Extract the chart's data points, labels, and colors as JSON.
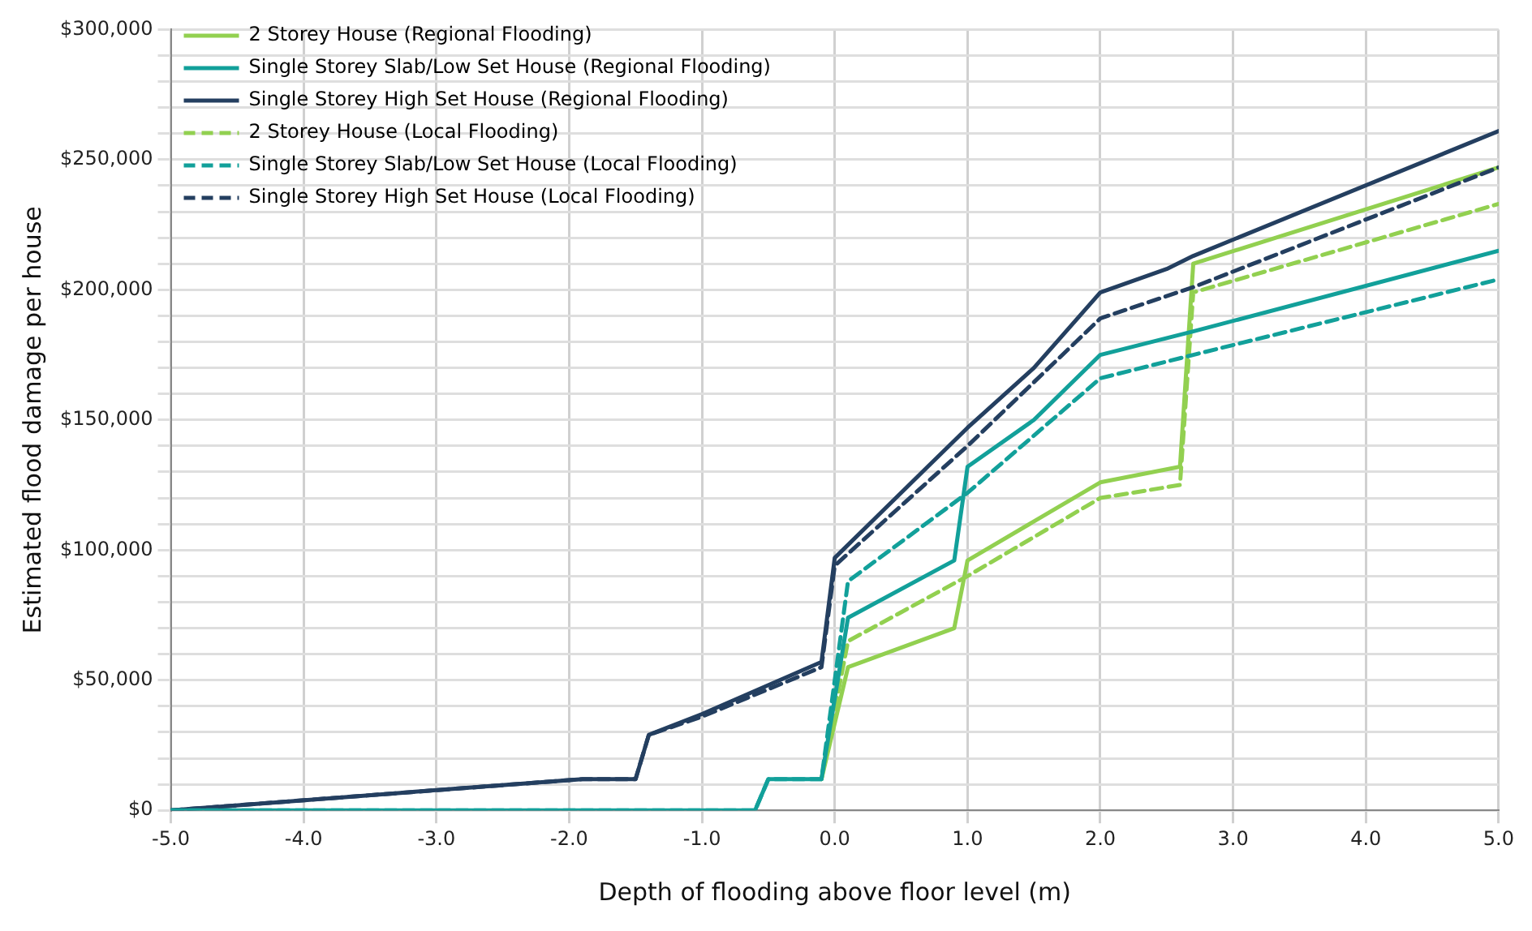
{
  "chart_data": {
    "type": "line",
    "xlabel": "Depth of flooding above floor level (m)",
    "ylabel": "Estimated flood damage per house",
    "xlim": [
      -5,
      5
    ],
    "ylim": [
      0,
      300000
    ],
    "xticks": [
      {
        "value": -5,
        "label": "-5.0"
      },
      {
        "value": -4,
        "label": "-4.0"
      },
      {
        "value": -3,
        "label": "-3.0"
      },
      {
        "value": -2,
        "label": "-2.0"
      },
      {
        "value": -1,
        "label": "-1.0"
      },
      {
        "value": 0,
        "label": "0.0"
      },
      {
        "value": 1,
        "label": "1.0"
      },
      {
        "value": 2,
        "label": "2.0"
      },
      {
        "value": 3,
        "label": "3.0"
      },
      {
        "value": 4,
        "label": "4.0"
      },
      {
        "value": 5,
        "label": "5.0"
      }
    ],
    "yticks": [
      {
        "value": 0,
        "label": "$0"
      },
      {
        "value": 10000,
        "label": null
      },
      {
        "value": 20000,
        "label": null
      },
      {
        "value": 30000,
        "label": null
      },
      {
        "value": 40000,
        "label": null
      },
      {
        "value": 50000,
        "label": "$50,000"
      },
      {
        "value": 60000,
        "label": null
      },
      {
        "value": 70000,
        "label": null
      },
      {
        "value": 80000,
        "label": null
      },
      {
        "value": 90000,
        "label": null
      },
      {
        "value": 100000,
        "label": "$100,000"
      },
      {
        "value": 110000,
        "label": null
      },
      {
        "value": 120000,
        "label": null
      },
      {
        "value": 130000,
        "label": null
      },
      {
        "value": 140000,
        "label": null
      },
      {
        "value": 150000,
        "label": "$150,000"
      },
      {
        "value": 160000,
        "label": null
      },
      {
        "value": 170000,
        "label": null
      },
      {
        "value": 180000,
        "label": null
      },
      {
        "value": 190000,
        "label": null
      },
      {
        "value": 200000,
        "label": "$200,000"
      },
      {
        "value": 210000,
        "label": null
      },
      {
        "value": 220000,
        "label": null
      },
      {
        "value": 230000,
        "label": null
      },
      {
        "value": 240000,
        "label": null
      },
      {
        "value": 250000,
        "label": "$250,000"
      },
      {
        "value": 260000,
        "label": null
      },
      {
        "value": 270000,
        "label": null
      },
      {
        "value": 280000,
        "label": null
      },
      {
        "value": 290000,
        "label": null
      },
      {
        "value": 300000,
        "label": "$300,000"
      }
    ],
    "grid": true,
    "legend": "top left",
    "marker": "none",
    "series": [
      {
        "name": "2 Storey House (Regional Flooding)",
        "color": "#92d050",
        "line_style": "solid",
        "x": [
          -0.1,
          0.1,
          0.9,
          1,
          2,
          2.6,
          2.7,
          5
        ],
        "values": [
          12000,
          55000,
          70000,
          96000,
          126000,
          132000,
          210000,
          247000
        ]
      },
      {
        "name": "Single Storey Slab/Low Set House (Regional Flooding)",
        "color": "#12a09a",
        "line_style": "solid",
        "x": [
          -5,
          -0.6,
          -0.5,
          -0.1,
          0.1,
          0.9,
          1,
          1.5,
          2,
          2.7,
          5
        ],
        "values": [
          0,
          0,
          12000,
          12000,
          74000,
          96000,
          132000,
          150000,
          175000,
          184000,
          215000
        ]
      },
      {
        "name": "Single Storey High Set House (Regional Flooding)",
        "color": "#243f60",
        "line_style": "solid",
        "x": [
          -5,
          -1.9,
          -1.5,
          -1.4,
          -1,
          -0.1,
          0,
          0.3,
          0.7,
          1,
          1.5,
          2,
          2.5,
          2.7,
          5
        ],
        "values": [
          0,
          12000,
          12000,
          29000,
          37000,
          57000,
          97000,
          112000,
          132000,
          147000,
          170000,
          199000,
          208000,
          213000,
          261000
        ]
      },
      {
        "name": "2 Storey House (Local Flooding)",
        "color": "#92d050",
        "line_style": "dashed",
        "x": [
          -0.1,
          0.1,
          1,
          2,
          2.6,
          2.7,
          5
        ],
        "values": [
          12000,
          65000,
          90000,
          120000,
          125000,
          199000,
          233000
        ]
      },
      {
        "name": "Single Storey Slab/Low Set House (Local Flooding)",
        "color": "#12a09a",
        "line_style": "dashed",
        "x": [
          -5,
          -0.6,
          -0.5,
          -0.1,
          0.1,
          1,
          2,
          2.7,
          5
        ],
        "values": [
          0,
          0,
          12000,
          12000,
          88000,
          122000,
          166000,
          175000,
          204000
        ]
      },
      {
        "name": "Single Storey High Set House (Local Flooding)",
        "color": "#243f60",
        "line_style": "dashed",
        "x": [
          -5,
          -1.9,
          -1.5,
          -1.4,
          -1,
          -0.1,
          0,
          1,
          2,
          2.7,
          5
        ],
        "values": [
          0,
          12000,
          12000,
          29000,
          36000,
          55000,
          94000,
          140000,
          189000,
          201000,
          247000
        ]
      }
    ]
  }
}
